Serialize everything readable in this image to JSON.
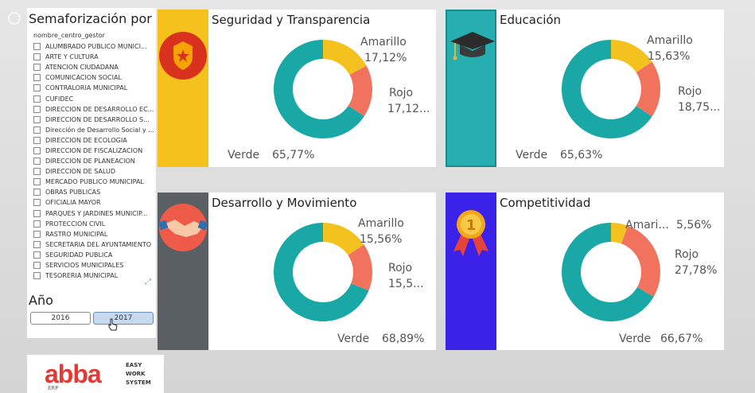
{
  "slicer": {
    "title": "Semaforización por ...",
    "field": "nombre_centro_gestor",
    "items": [
      "ALUMBRADO PUBLICO MUNICI...",
      "ARTE Y CULTURA",
      "ATENCION CIUDADANA",
      "COMUNICACION SOCIAL",
      "CONTRALORIA MUNICIPAL",
      "CUFIDEC",
      "DIRECCION DE DESARROLLO EC...",
      "DIRECCION DE DESARROLLO S...",
      "Dirección de Desarrollo Social y ...",
      "DIRECCION DE ECOLOGIA",
      "DIRECCION DE FISCALIZACION",
      "DIRECCION DE PLANEACION",
      "DIRECCION DE SALUD",
      "MERCADO PUBLICO MUNICIPAL",
      "OBRAS PUBLICAS",
      "OFICIALIA MAYOR",
      "PARQUES Y JARDINES MUNICIP...",
      "PROTECCION CIVIL",
      "RASTRO MUNICIPAL",
      "SECRETARIA DEL AYUNTAMIENTO",
      "SEGURIDAD PUBLICA",
      "SERVICIOS MUNICIPALES",
      "TESORERIA MUNICIPAL"
    ]
  },
  "year": {
    "title": "Año",
    "options": [
      "2016",
      "2017"
    ],
    "selected": "2017"
  },
  "colors": {
    "amarillo": "#f4c21f",
    "rojo": "#f2735d",
    "verde": "#1aa8a7"
  },
  "icons": {
    "c0": "police-badge-icon",
    "c1": "graduation-cap-icon",
    "c2": "handshake-icon",
    "c3": "first-place-medal-icon"
  },
  "chart_data": [
    {
      "type": "pie",
      "title": "Seguridad y Transparencia",
      "labels": [
        "Amarillo",
        "Rojo",
        "Verde"
      ],
      "values": [
        17.12,
        17.12,
        65.77
      ],
      "display": [
        "17,12%",
        "17,12...",
        "65,77%"
      ]
    },
    {
      "type": "pie",
      "title": "Educación",
      "labels": [
        "Amarillo",
        "Rojo",
        "Verde"
      ],
      "values": [
        15.63,
        18.75,
        65.63
      ],
      "display": [
        "15,63%",
        "18,75...",
        "65,63%"
      ]
    },
    {
      "type": "pie",
      "title": "Desarrollo y Movimiento",
      "labels": [
        "Amarillo",
        "Rojo",
        "Verde"
      ],
      "values": [
        15.56,
        15.56,
        68.89
      ],
      "display": [
        "15,56%",
        "15,5...",
        "68,89%"
      ]
    },
    {
      "type": "pie",
      "title": "Competitividad",
      "labels": [
        "Amari...",
        "Rojo",
        "Verde"
      ],
      "values": [
        5.56,
        27.78,
        66.67
      ],
      "display": [
        "5,56%",
        "27,78%",
        "66,67%"
      ]
    }
  ],
  "logo": {
    "brand": "abba",
    "tagline": [
      "EASY",
      "WORK",
      "SYSTEM"
    ],
    "sub": "ERP"
  }
}
